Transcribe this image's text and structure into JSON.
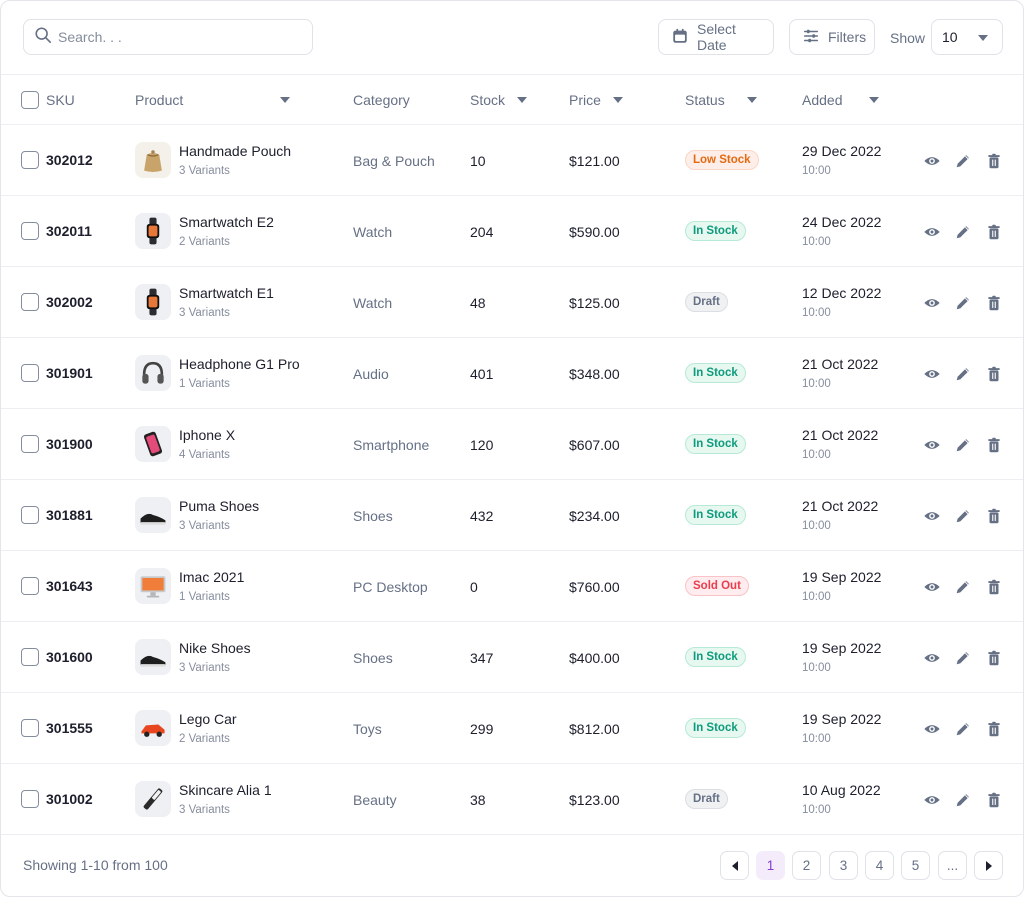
{
  "toolbar": {
    "search_placeholder": "Search. . .",
    "date_button": "Select Date",
    "filter_button": "Filters",
    "show_label": "Show",
    "show_value": "10"
  },
  "columns": {
    "sku": "SKU",
    "product": "Product",
    "category": "Category",
    "stock": "Stock",
    "price": "Price",
    "status": "Status",
    "added": "Added"
  },
  "rows": [
    {
      "sku": "302012",
      "product": "Handmade Pouch",
      "variants": "3 Variants",
      "category": "Bag & Pouch",
      "stock": "10",
      "price": "$121.00",
      "status": "Low Stock",
      "status_kind": "low",
      "date": "29 Dec 2022",
      "time": "10:00",
      "icon": "pouch-icon"
    },
    {
      "sku": "302011",
      "product": "Smartwatch E2",
      "variants": "2 Variants",
      "category": "Watch",
      "stock": "204",
      "price": "$590.00",
      "status": "In Stock",
      "status_kind": "in",
      "date": "24 Dec 2022",
      "time": "10:00",
      "icon": "smartwatch-icon"
    },
    {
      "sku": "302002",
      "product": "Smartwatch E1",
      "variants": "3 Variants",
      "category": "Watch",
      "stock": "48",
      "price": "$125.00",
      "status": "Draft",
      "status_kind": "draft",
      "date": "12 Dec 2022",
      "time": "10:00",
      "icon": "smartwatch-icon"
    },
    {
      "sku": "301901",
      "product": "Headphone G1 Pro",
      "variants": "1 Variants",
      "category": "Audio",
      "stock": "401",
      "price": "$348.00",
      "status": "In Stock",
      "status_kind": "in",
      "date": "21 Oct 2022",
      "time": "10:00",
      "icon": "headphone-icon"
    },
    {
      "sku": "301900",
      "product": "Iphone X",
      "variants": "4 Variants",
      "category": "Smartphone",
      "stock": "120",
      "price": "$607.00",
      "status": "In Stock",
      "status_kind": "in",
      "date": "21 Oct 2022",
      "time": "10:00",
      "icon": "phone-icon"
    },
    {
      "sku": "301881",
      "product": "Puma Shoes",
      "variants": "3 Variants",
      "category": "Shoes",
      "stock": "432",
      "price": "$234.00",
      "status": "In Stock",
      "status_kind": "in",
      "date": "21 Oct 2022",
      "time": "10:00",
      "icon": "shoe-icon"
    },
    {
      "sku": "301643",
      "product": "Imac 2021",
      "variants": "1 Variants",
      "category": "PC Desktop",
      "stock": "0",
      "price": "$760.00",
      "status": "Sold Out",
      "status_kind": "sold",
      "date": "19 Sep 2022",
      "time": "10:00",
      "icon": "desktop-icon"
    },
    {
      "sku": "301600",
      "product": "Nike Shoes",
      "variants": "3 Variants",
      "category": "Shoes",
      "stock": "347",
      "price": "$400.00",
      "status": "In Stock",
      "status_kind": "in",
      "date": "19 Sep 2022",
      "time": "10:00",
      "icon": "shoe-icon"
    },
    {
      "sku": "301555",
      "product": "Lego Car",
      "variants": "2 Variants",
      "category": "Toys",
      "stock": "299",
      "price": "$812.00",
      "status": "In Stock",
      "status_kind": "in",
      "date": "19 Sep 2022",
      "time": "10:00",
      "icon": "toy-car-icon"
    },
    {
      "sku": "301002",
      "product": "Skincare Alia 1",
      "variants": "3 Variants",
      "category": "Beauty",
      "stock": "38",
      "price": "$123.00",
      "status": "Draft",
      "status_kind": "draft",
      "date": "10 Aug 2022",
      "time": "10:00",
      "icon": "skincare-icon"
    }
  ],
  "footer": {
    "showing_text": "Showing 1-10 from 100",
    "pages": [
      "1",
      "2",
      "3",
      "4",
      "5",
      "..."
    ],
    "active_page": "1"
  },
  "colors": {
    "accent": "#883cce",
    "in_stock": "#0d9b7c",
    "low_stock": "#e46a11",
    "sold_out": "#eb3d4d",
    "draft": "#667085"
  }
}
